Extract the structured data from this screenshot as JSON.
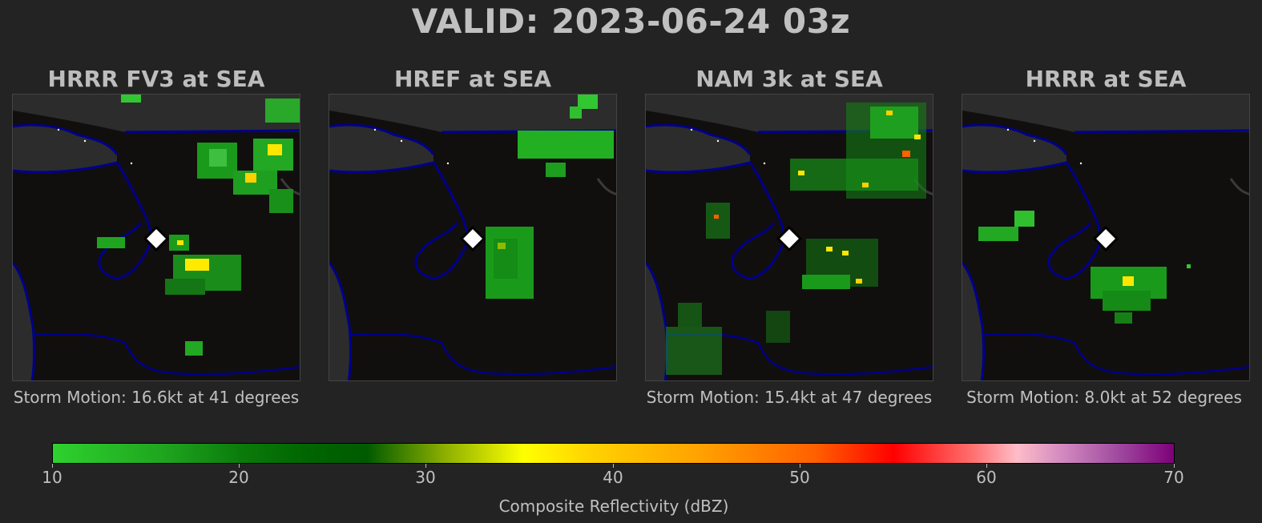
{
  "title": "VALID: 2023-06-24 03z",
  "panels": [
    {
      "title": "HRRR FV3 at SEA",
      "caption": "Storm Motion: 16.6kt at 41 degrees"
    },
    {
      "title": "HREF at SEA",
      "caption": ""
    },
    {
      "title": "NAM 3k at SEA",
      "caption": "Storm Motion: 15.4kt at 47 degrees"
    },
    {
      "title": "HRRR at SEA",
      "caption": "Storm Motion: 8.0kt at 52 degrees"
    }
  ],
  "colorbar": {
    "label": "Composite Reflectivity (dBZ)",
    "ticks": [
      "10",
      "20",
      "30",
      "40",
      "50",
      "60",
      "70"
    ]
  },
  "colors": {
    "background": "#232323",
    "map_background": "#110e0e",
    "land": "#2c2c2c",
    "coastline": "#00008b",
    "marker": "#ffffff"
  }
}
